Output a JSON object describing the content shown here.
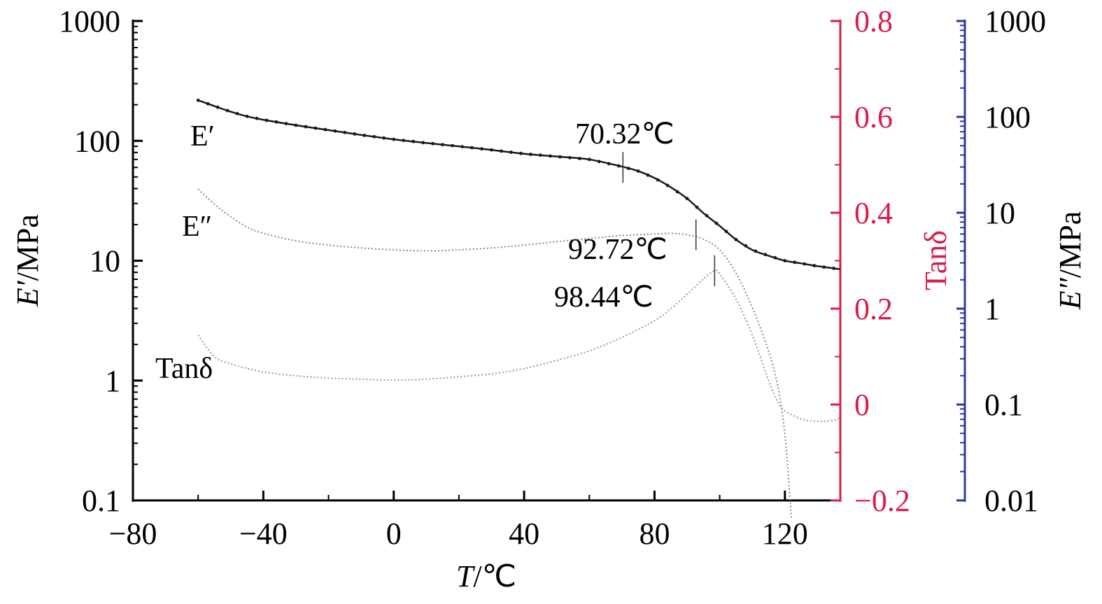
{
  "chart_data": {
    "type": "line",
    "title": "",
    "xlabel": {
      "italic": "T",
      "rest": "/℃"
    },
    "ylabel_left": {
      "italic": "E′",
      "rest": "/MPa"
    },
    "ylabel_right_1": "Tanδ",
    "ylabel_right_2": {
      "italic": "E″",
      "rest": "/MPa"
    },
    "x_range": [
      -80,
      137
    ],
    "x_ticks": [
      -80,
      -40,
      0,
      40,
      80,
      120
    ],
    "x_tick_labels": [
      "−80",
      "−40",
      "0",
      "40",
      "80",
      "120"
    ],
    "y_left": {
      "scale": "log",
      "range": [
        0.1,
        1000
      ],
      "ticks": [
        0.1,
        1,
        10,
        100,
        1000
      ],
      "tick_labels": [
        "0.1",
        "1",
        "10",
        "100",
        "1000"
      ]
    },
    "y_right_1": {
      "scale": "linear",
      "range": [
        -0.2,
        0.8
      ],
      "ticks": [
        -0.2,
        0,
        0.2,
        0.4,
        0.6,
        0.8
      ],
      "tick_labels": [
        "−0.2",
        "0",
        "0.2",
        "0.4",
        "0.6",
        "0.8"
      ],
      "color": "#d81e4a"
    },
    "y_right_2": {
      "scale": "log",
      "range": [
        0.01,
        1000
      ],
      "ticks": [
        0.01,
        0.1,
        1,
        10,
        100,
        1000
      ],
      "tick_labels": [
        "0.01",
        "0.1",
        "1",
        "10",
        "100",
        "1000"
      ],
      "color": "#2a3aa0"
    },
    "series": [
      {
        "name": "E′",
        "axis": "left",
        "color": "#1a1a1a",
        "x": [
          -60,
          -55,
          -50,
          -45,
          -40,
          -30,
          -20,
          -10,
          0,
          10,
          20,
          30,
          40,
          50,
          60,
          70,
          75,
          80,
          85,
          90,
          95,
          100,
          105,
          110,
          115,
          120,
          125,
          130,
          137
        ],
        "y": [
          218,
          195,
          175,
          160,
          150,
          135,
          123,
          112,
          103,
          96,
          90,
          84,
          78,
          74,
          70,
          61,
          56,
          49,
          41,
          33,
          25,
          19.5,
          15,
          12.3,
          11,
          10,
          9.5,
          9,
          8.5
        ]
      },
      {
        "name": "E″",
        "axis": "right_2",
        "color": "#8a8a8a",
        "x": [
          -60,
          -55,
          -50,
          -45,
          -40,
          -30,
          -20,
          -10,
          0,
          10,
          20,
          30,
          40,
          50,
          60,
          70,
          80,
          85,
          90,
          95,
          100,
          105,
          110,
          115,
          118,
          120,
          121,
          122
        ],
        "y": [
          17.6,
          12.3,
          9.1,
          7.1,
          6.1,
          5.1,
          4.6,
          4.3,
          4.1,
          4.0,
          4.1,
          4.3,
          4.6,
          5.0,
          5.4,
          5.8,
          6.0,
          6.1,
          5.9,
          5.3,
          4.1,
          2.35,
          1.03,
          0.36,
          0.145,
          0.049,
          0.019,
          0.0065
        ]
      },
      {
        "name": "Tanδ",
        "axis": "right_1",
        "color": "#9a9a9a",
        "x": [
          -60,
          -55,
          -50,
          -40,
          -30,
          -20,
          -10,
          0,
          10,
          20,
          30,
          40,
          50,
          60,
          70,
          80,
          85,
          90,
          95,
          98.44,
          100,
          105,
          110,
          115,
          118,
          120,
          125,
          130,
          135,
          137
        ],
        "y": [
          0.145,
          0.1,
          0.085,
          0.068,
          0.06,
          0.055,
          0.053,
          0.051,
          0.053,
          0.058,
          0.064,
          0.075,
          0.092,
          0.112,
          0.14,
          0.175,
          0.2,
          0.23,
          0.262,
          0.279,
          0.272,
          0.22,
          0.145,
          0.05,
          0.003,
          -0.013,
          -0.03,
          -0.035,
          -0.033,
          -0.026
        ]
      }
    ],
    "series_labels": [
      "E′",
      "E″",
      "Tanδ"
    ],
    "annotations": [
      {
        "text": "70.32℃",
        "series": "E′",
        "x": 70.32,
        "y": 60
      },
      {
        "text": "92.72℃",
        "series": "E″",
        "x": 92.72,
        "y": 5.9
      },
      {
        "text": "98.44℃",
        "series": "Tanδ",
        "x": 98.44,
        "y": 0.279
      }
    ],
    "grid": false,
    "legend": "none"
  }
}
